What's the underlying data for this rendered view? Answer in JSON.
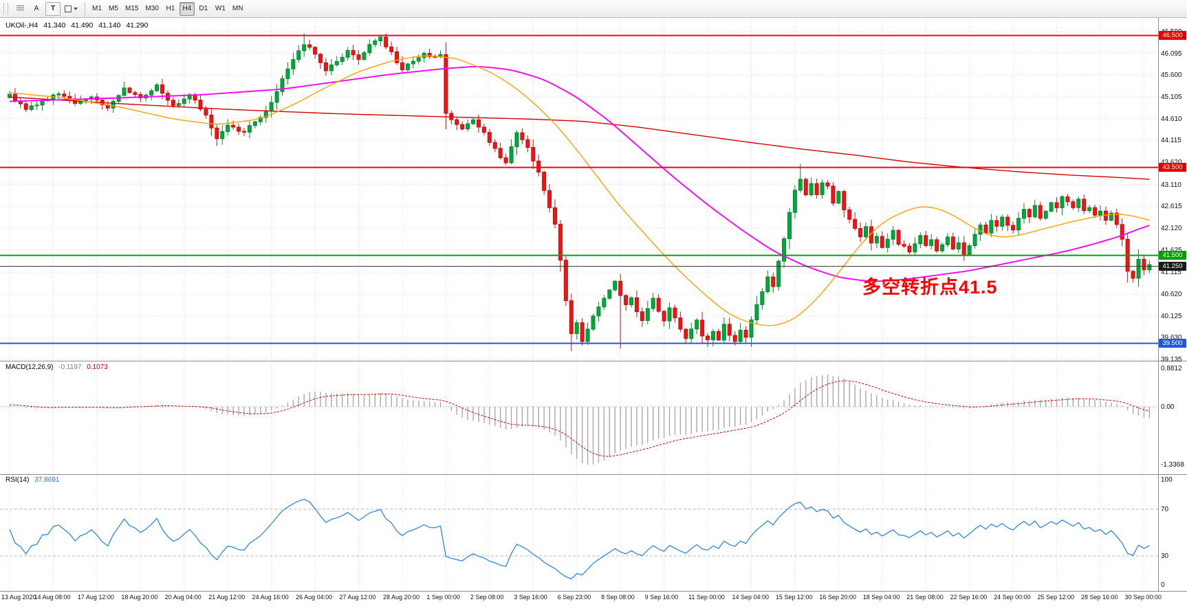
{
  "toolbar": {
    "cursor_label": "A",
    "text_tool_label": "T",
    "timeframes": [
      "M1",
      "M5",
      "M15",
      "M30",
      "H1",
      "H4",
      "D1",
      "W1",
      "MN"
    ],
    "active_timeframe": "H4"
  },
  "chart_header": {
    "symbol": "UKOil-,H4",
    "open": "41.340",
    "high": "41.490",
    "low": "41.140",
    "close": "41.290"
  },
  "price_axis": {
    "labels": [
      "46.590",
      "46.095",
      "45.600",
      "45.105",
      "44.610",
      "44.115",
      "43.620",
      "43.110",
      "42.615",
      "42.120",
      "41.625",
      "41.115",
      "40.620",
      "40.125",
      "39.630",
      "39.135"
    ],
    "badges": [
      {
        "value": "46.500",
        "price": 46.5,
        "color": "#e80000"
      },
      {
        "value": "43.500",
        "price": 43.5,
        "color": "#e80000"
      },
      {
        "value": "41.500",
        "price": 41.5,
        "color": "#00a000"
      },
      {
        "value": "41.250",
        "price": 41.25,
        "color": "#1a1a1a"
      },
      {
        "value": "39.500",
        "price": 39.5,
        "color": "#1e5ae1"
      }
    ]
  },
  "time_axis": {
    "labels": [
      "13 Aug 2020",
      "14 Aug 08:00",
      "17 Aug 12:00",
      "18 Aug 20:00",
      "20 Aug 04:00",
      "21 Aug 12:00",
      "24 Aug 16:00",
      "26 Aug 04:00",
      "27 Aug 12:00",
      "28 Aug 20:00",
      "1 Sep 00:00",
      "2 Sep 08:00",
      "3 Sep 16:00",
      "6 Sep 23:00",
      "8 Sep 08:00",
      "9 Sep 16:00",
      "11 Sep 00:00",
      "14 Sep 04:00",
      "15 Sep 12:00",
      "16 Sep 20:00",
      "18 Sep 04:00",
      "21 Sep 08:00",
      "22 Sep 16:00",
      "24 Sep 00:00",
      "25 Sep 12:00",
      "28 Sep 16:00",
      "30 Sep 00:00"
    ]
  },
  "hlines": [
    {
      "price": 46.5,
      "color": "#ff0000",
      "width": 2
    },
    {
      "price": 43.5,
      "color": "#ff0000",
      "width": 2
    },
    {
      "price": 41.5,
      "color": "#00a000",
      "width": 2
    },
    {
      "price": 41.25,
      "color": "#303030",
      "width": 1
    },
    {
      "price": 39.5,
      "color": "#1e5ae1",
      "width": 2
    }
  ],
  "annotation": {
    "text": "多空转折点41.5",
    "color": "#ff0000"
  },
  "macd_panel": {
    "name": "MACD(12,26,9)",
    "macd_value": "-0.1197",
    "signal_value": "0.1073",
    "axis_labels": [
      {
        "value": "0.8812",
        "level": 0.8812
      },
      {
        "value": "0.00",
        "level": 0
      },
      {
        "value": "-1.3368",
        "level": -1.3368
      }
    ]
  },
  "rsi_panel": {
    "name": "RSI(14)",
    "value": "37.8691",
    "axis_labels": [
      {
        "value": "100",
        "level": 100
      },
      {
        "value": "70",
        "level": 70
      },
      {
        "value": "30",
        "level": 30
      },
      {
        "value": "0",
        "level": 0
      }
    ],
    "level_lines": [
      70,
      30
    ]
  },
  "colors": {
    "up": "#00a83c",
    "up_border": "#008a2e",
    "down": "#f01414",
    "down_border": "#c21010",
    "ma_slow": "#d40000",
    "ma_medium": "#ff00ff",
    "ma_fast": "#ffa000",
    "macd_hist": "#a8a8a8",
    "macd_signal": "#d00000",
    "rsi_line": "#2e86e0",
    "grid": "#dedede",
    "separator": "#8c8c8c"
  },
  "chart_data": {
    "type": "candlestick",
    "symbol": "UKOil- H4",
    "visible_range": {
      "start": "13 Aug 2020",
      "end": "30 Sep 2020"
    },
    "candle_count": 210,
    "last_ohlc": [
      41.34,
      41.49,
      41.14,
      41.29
    ],
    "levels": [
      46.5,
      43.5,
      41.5,
      41.25,
      39.5
    ],
    "price_anchors": [
      [
        0,
        45.15
      ],
      [
        3,
        44.8
      ],
      [
        6,
        45.0
      ],
      [
        9,
        45.2
      ],
      [
        12,
        44.95
      ],
      [
        15,
        45.1
      ],
      [
        18,
        44.85
      ],
      [
        21,
        45.3
      ],
      [
        24,
        45.05
      ],
      [
        27,
        45.35
      ],
      [
        30,
        44.9
      ],
      [
        33,
        45.15
      ],
      [
        36,
        44.7
      ],
      [
        38,
        44.15
      ],
      [
        40,
        44.45
      ],
      [
        43,
        44.3
      ],
      [
        46,
        44.65
      ],
      [
        48,
        44.95
      ],
      [
        50,
        45.5
      ],
      [
        52,
        45.95
      ],
      [
        54,
        46.3
      ],
      [
        56,
        46.1
      ],
      [
        58,
        45.7
      ],
      [
        60,
        45.9
      ],
      [
        62,
        46.15
      ],
      [
        64,
        45.95
      ],
      [
        66,
        46.3
      ],
      [
        68,
        46.45
      ],
      [
        70,
        46.1
      ],
      [
        72,
        45.7
      ],
      [
        74,
        45.95
      ],
      [
        76,
        46.1
      ],
      [
        78,
        46.0
      ],
      [
        79,
        46.05
      ],
      [
        80,
        44.7
      ],
      [
        81,
        44.55
      ],
      [
        83,
        44.4
      ],
      [
        85,
        44.55
      ],
      [
        87,
        44.3
      ],
      [
        89,
        43.9
      ],
      [
        91,
        43.6
      ],
      [
        93,
        44.3
      ],
      [
        95,
        43.95
      ],
      [
        97,
        43.4
      ],
      [
        99,
        42.6
      ],
      [
        100,
        42.2
      ],
      [
        101,
        41.4
      ],
      [
        102,
        40.5
      ],
      [
        103,
        39.75
      ],
      [
        104,
        40.0
      ],
      [
        105,
        39.55
      ],
      [
        106,
        39.85
      ],
      [
        107,
        40.1
      ],
      [
        108,
        40.3
      ],
      [
        109,
        40.55
      ],
      [
        110,
        40.7
      ],
      [
        111,
        40.9
      ],
      [
        112,
        40.6
      ],
      [
        113,
        40.4
      ],
      [
        114,
        40.55
      ],
      [
        115,
        40.25
      ],
      [
        116,
        40.05
      ],
      [
        117,
        40.3
      ],
      [
        118,
        40.5
      ],
      [
        119,
        40.2
      ],
      [
        120,
        40.0
      ],
      [
        121,
        40.3
      ],
      [
        122,
        40.1
      ],
      [
        123,
        39.85
      ],
      [
        124,
        39.6
      ],
      [
        125,
        39.8
      ],
      [
        126,
        40.05
      ],
      [
        127,
        39.7
      ],
      [
        128,
        39.55
      ],
      [
        129,
        39.75
      ],
      [
        130,
        39.6
      ],
      [
        131,
        39.9
      ],
      [
        132,
        39.7
      ],
      [
        133,
        39.55
      ],
      [
        134,
        39.8
      ],
      [
        135,
        39.65
      ],
      [
        136,
        40.0
      ],
      [
        137,
        40.35
      ],
      [
        138,
        40.7
      ],
      [
        139,
        41.0
      ],
      [
        140,
        40.8
      ],
      [
        141,
        41.4
      ],
      [
        142,
        41.9
      ],
      [
        143,
        42.5
      ],
      [
        144,
        42.95
      ],
      [
        145,
        43.2
      ],
      [
        146,
        42.9
      ],
      [
        147,
        43.1
      ],
      [
        148,
        42.85
      ],
      [
        149,
        43.15
      ],
      [
        150,
        43.05
      ],
      [
        151,
        42.7
      ],
      [
        152,
        42.95
      ],
      [
        153,
        42.55
      ],
      [
        154,
        42.3
      ],
      [
        155,
        42.1
      ],
      [
        156,
        41.9
      ],
      [
        157,
        42.15
      ],
      [
        158,
        41.8
      ],
      [
        159,
        41.95
      ],
      [
        160,
        41.7
      ],
      [
        161,
        41.9
      ],
      [
        162,
        42.05
      ],
      [
        163,
        41.75
      ],
      [
        165,
        41.6
      ],
      [
        167,
        41.95
      ],
      [
        168,
        41.7
      ],
      [
        169,
        41.85
      ],
      [
        170,
        41.6
      ],
      [
        171,
        41.75
      ],
      [
        172,
        41.9
      ],
      [
        173,
        41.65
      ],
      [
        174,
        41.8
      ],
      [
        175,
        41.55
      ],
      [
        176,
        41.7
      ],
      [
        177,
        41.95
      ],
      [
        178,
        42.2
      ],
      [
        179,
        42.0
      ],
      [
        180,
        42.3
      ],
      [
        181,
        42.15
      ],
      [
        182,
        42.4
      ],
      [
        183,
        42.2
      ],
      [
        184,
        42.1
      ],
      [
        185,
        42.35
      ],
      [
        186,
        42.55
      ],
      [
        187,
        42.4
      ],
      [
        188,
        42.6
      ],
      [
        189,
        42.35
      ],
      [
        190,
        42.5
      ],
      [
        191,
        42.7
      ],
      [
        192,
        42.6
      ],
      [
        193,
        42.85
      ],
      [
        194,
        42.7
      ],
      [
        195,
        42.55
      ],
      [
        196,
        42.75
      ],
      [
        197,
        42.5
      ],
      [
        198,
        42.6
      ],
      [
        199,
        42.4
      ],
      [
        200,
        42.5
      ],
      [
        201,
        42.3
      ],
      [
        202,
        42.45
      ],
      [
        203,
        42.2
      ],
      [
        204,
        41.9
      ],
      [
        205,
        41.15
      ],
      [
        206,
        41.0
      ],
      [
        207,
        41.4
      ],
      [
        208,
        41.2
      ],
      [
        209,
        41.29
      ]
    ],
    "wick_overrides": [
      [
        54,
        "h",
        46.55
      ],
      [
        68,
        "h",
        46.52
      ],
      [
        103,
        "l",
        39.32
      ],
      [
        112,
        "l",
        39.38
      ],
      [
        128,
        "l",
        39.42
      ],
      [
        136,
        "l",
        39.42
      ],
      [
        145,
        "h",
        43.58
      ],
      [
        205,
        "l",
        40.88
      ]
    ],
    "ma_lines": [
      {
        "name": "slow-ma",
        "anchors": [
          [
            0,
            45.1
          ],
          [
            20,
            44.95
          ],
          [
            40,
            44.82
          ],
          [
            60,
            44.72
          ],
          [
            80,
            44.65
          ],
          [
            95,
            44.6
          ],
          [
            105,
            44.55
          ],
          [
            115,
            44.42
          ],
          [
            125,
            44.25
          ],
          [
            135,
            44.08
          ],
          [
            145,
            43.92
          ],
          [
            155,
            43.78
          ],
          [
            165,
            43.62
          ],
          [
            175,
            43.5
          ],
          [
            185,
            43.4
          ],
          [
            195,
            43.32
          ],
          [
            202,
            43.28
          ],
          [
            209,
            43.23
          ]
        ]
      },
      {
        "name": "medium-ma",
        "anchors": [
          [
            0,
            45.0
          ],
          [
            20,
            45.08
          ],
          [
            35,
            45.15
          ],
          [
            50,
            45.28
          ],
          [
            60,
            45.45
          ],
          [
            70,
            45.62
          ],
          [
            80,
            45.75
          ],
          [
            86,
            45.8
          ],
          [
            92,
            45.72
          ],
          [
            98,
            45.5
          ],
          [
            104,
            45.1
          ],
          [
            110,
            44.55
          ],
          [
            116,
            43.9
          ],
          [
            122,
            43.25
          ],
          [
            128,
            42.65
          ],
          [
            134,
            42.1
          ],
          [
            140,
            41.6
          ],
          [
            146,
            41.25
          ],
          [
            152,
            41.0
          ],
          [
            158,
            40.9
          ],
          [
            164,
            40.95
          ],
          [
            170,
            41.05
          ],
          [
            176,
            41.15
          ],
          [
            182,
            41.3
          ],
          [
            188,
            41.45
          ],
          [
            194,
            41.6
          ],
          [
            200,
            41.8
          ],
          [
            204,
            41.95
          ],
          [
            207,
            42.1
          ],
          [
            209,
            42.18
          ]
        ]
      },
      {
        "name": "fast-ma",
        "anchors": [
          [
            0,
            45.2
          ],
          [
            10,
            45.08
          ],
          [
            20,
            44.88
          ],
          [
            30,
            44.6
          ],
          [
            38,
            44.47
          ],
          [
            46,
            44.6
          ],
          [
            52,
            44.92
          ],
          [
            58,
            45.32
          ],
          [
            64,
            45.68
          ],
          [
            70,
            45.92
          ],
          [
            76,
            46.05
          ],
          [
            82,
            45.98
          ],
          [
            88,
            45.68
          ],
          [
            92,
            45.38
          ],
          [
            96,
            44.98
          ],
          [
            100,
            44.5
          ],
          [
            104,
            43.9
          ],
          [
            108,
            43.25
          ],
          [
            112,
            42.6
          ],
          [
            116,
            42.05
          ],
          [
            120,
            41.5
          ],
          [
            124,
            41.0
          ],
          [
            128,
            40.55
          ],
          [
            132,
            40.15
          ],
          [
            136,
            39.95
          ],
          [
            140,
            39.88
          ],
          [
            144,
            40.05
          ],
          [
            148,
            40.5
          ],
          [
            152,
            41.1
          ],
          [
            156,
            41.75
          ],
          [
            160,
            42.25
          ],
          [
            164,
            42.5
          ],
          [
            167,
            42.62
          ],
          [
            170,
            42.58
          ],
          [
            173,
            42.42
          ],
          [
            176,
            42.18
          ],
          [
            179,
            41.98
          ],
          [
            182,
            41.9
          ],
          [
            185,
            41.95
          ],
          [
            188,
            42.05
          ],
          [
            192,
            42.18
          ],
          [
            196,
            42.3
          ],
          [
            200,
            42.4
          ],
          [
            203,
            42.45
          ],
          [
            206,
            42.4
          ],
          [
            209,
            42.3
          ]
        ]
      }
    ],
    "indicators": {
      "macd": {
        "params": "12,26,9",
        "current_macd": -0.1197,
        "current_signal": 0.1073,
        "scale_max": 0.8812,
        "scale_min": -1.3368
      },
      "rsi": {
        "params": "14",
        "current": 37.8691,
        "levels": [
          70,
          30
        ]
      }
    }
  }
}
